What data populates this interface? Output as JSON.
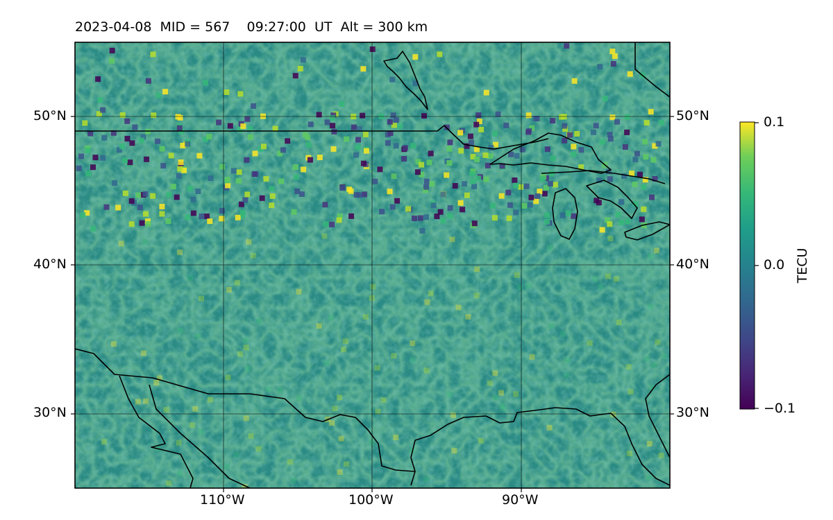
{
  "title": "2023-04-08  MID = 567    09:27:00  UT  Alt = 300 km",
  "map": {
    "projection": "plate carree",
    "lon_range": [
      -120,
      -80
    ],
    "lat_range": [
      25,
      55
    ],
    "gridlines": true,
    "left_lat_labels": [
      "50°N",
      "40°N",
      "30°N"
    ],
    "right_lat_labels": [
      "50°N",
      "40°N",
      "30°N"
    ],
    "lon_labels": [
      "110°W",
      "100°W",
      "90°W"
    ],
    "field": "TEC perturbation",
    "colormap": "viridis"
  },
  "colorbar": {
    "label": "TECU",
    "range": [
      -0.1,
      0.1
    ],
    "ticks": [
      "0.1",
      "0.0",
      "−0.1"
    ]
  }
}
